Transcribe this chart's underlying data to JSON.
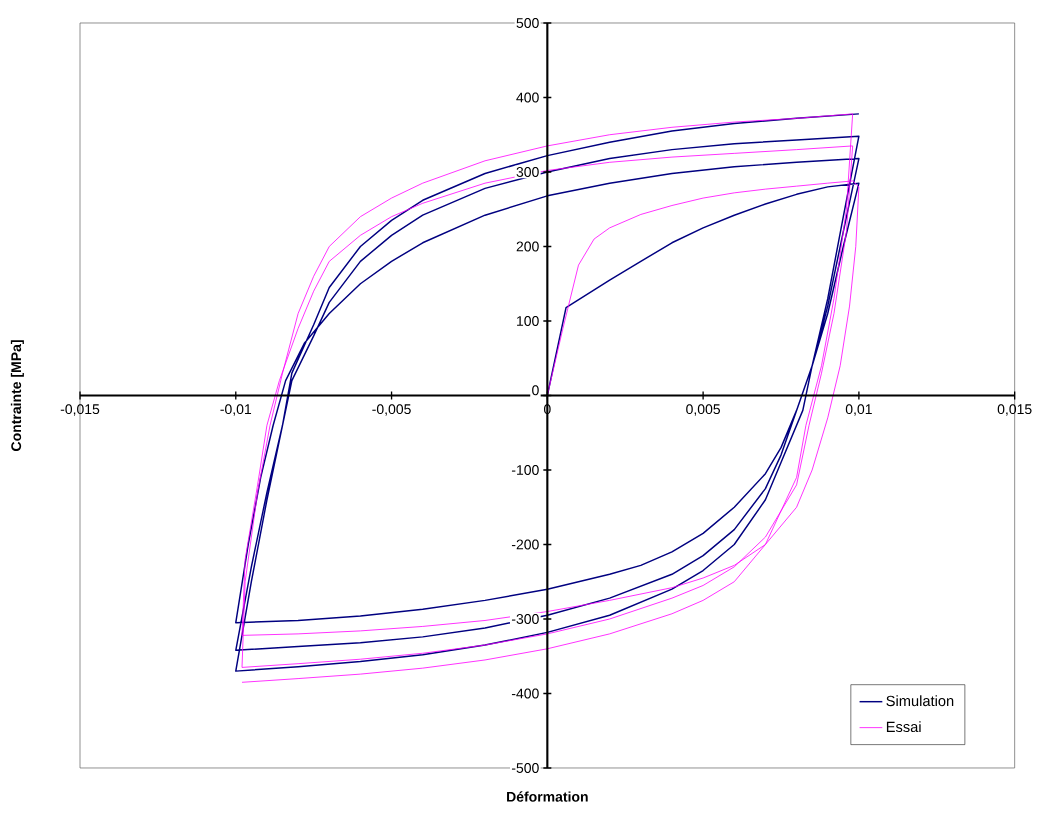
{
  "chart_data": {
    "type": "line",
    "xlabel": "Déformation",
    "ylabel": "Contrainte [MPa]",
    "xlim": [
      -0.015,
      0.015
    ],
    "ylim": [
      -500,
      500
    ],
    "xticks": [
      {
        "value": -0.015,
        "label": "-0,015"
      },
      {
        "value": -0.01,
        "label": "-0,01"
      },
      {
        "value": -0.005,
        "label": "-0,005"
      },
      {
        "value": 0,
        "label": "0"
      },
      {
        "value": 0.005,
        "label": "0,005"
      },
      {
        "value": 0.01,
        "label": "0,01"
      },
      {
        "value": 0.015,
        "label": "0,015"
      }
    ],
    "yticks": [
      -500,
      -400,
      -300,
      -200,
      -100,
      0,
      100,
      200,
      300,
      400,
      500
    ],
    "legend": "bottom right",
    "marker": "none",
    "line_style": "solid",
    "series": [
      {
        "name": "Simulation",
        "color": "#000080",
        "x": [
          0,
          0.0006,
          0.002,
          0.003,
          0.004,
          0.005,
          0.006,
          0.007,
          0.008,
          0.009,
          0.01,
          0.0095,
          0.009,
          0.0085,
          0.008,
          0.0075,
          0.007,
          0.006,
          0.005,
          0.004,
          0.003,
          0.002,
          0.001,
          0,
          -0.002,
          -0.004,
          -0.006,
          -0.008,
          -0.01,
          -0.0096,
          -0.0092,
          -0.0088,
          -0.0084,
          -0.0078,
          -0.007,
          -0.006,
          -0.005,
          -0.004,
          -0.002,
          0,
          0.002,
          0.004,
          0.006,
          0.008,
          0.01,
          0.0095,
          0.009,
          0.0085,
          0.008,
          0.0075,
          0.007,
          0.006,
          0.005,
          0.004,
          0.002,
          0,
          -0.002,
          -0.004,
          -0.006,
          -0.008,
          -0.01,
          -0.0095,
          -0.009,
          -0.0085,
          -0.0082,
          -0.0075,
          -0.007,
          -0.006,
          -0.005,
          -0.004,
          -0.002,
          0,
          0.002,
          0.004,
          0.006,
          0.008,
          0.01,
          0.0095,
          0.009,
          0.0085,
          0.0082,
          0.0075,
          0.007,
          0.006,
          0.005,
          0.004,
          0.002,
          0,
          -0.002,
          -0.004,
          -0.006,
          -0.008,
          -0.01,
          -0.0095,
          -0.009,
          -0.0085,
          -0.0082,
          -0.0075,
          -0.007,
          -0.006,
          -0.005,
          -0.004,
          -0.002,
          0,
          0.002,
          0.004,
          0.006,
          0.008,
          0.01
        ],
        "values": [
          0,
          118,
          155,
          180,
          205,
          225,
          242,
          257,
          270,
          280,
          285,
          200,
          110,
          40,
          -20,
          -70,
          -105,
          -150,
          -185,
          -210,
          -228,
          -240,
          -250,
          -260,
          -275,
          -287,
          -296,
          -302,
          -305,
          -200,
          -110,
          -40,
          20,
          70,
          110,
          150,
          180,
          205,
          242,
          268,
          285,
          298,
          307,
          313,
          318,
          220,
          120,
          40,
          -20,
          -80,
          -125,
          -180,
          -215,
          -240,
          -272,
          -295,
          -312,
          -324,
          -332,
          -337,
          -342,
          -230,
          -130,
          -40,
          20,
          80,
          125,
          180,
          215,
          242,
          278,
          300,
          318,
          330,
          338,
          343,
          348,
          240,
          130,
          40,
          -20,
          -90,
          -140,
          -200,
          -235,
          -260,
          -295,
          -318,
          -335,
          -348,
          -357,
          -364,
          -370,
          -250,
          -140,
          -40,
          30,
          95,
          145,
          200,
          235,
          262,
          298,
          322,
          340,
          355,
          365,
          372,
          378
        ]
      },
      {
        "name": "Essai",
        "color": "#ff00ff",
        "x": [
          0,
          0.0005,
          0.001,
          0.0015,
          0.002,
          0.003,
          0.004,
          0.005,
          0.006,
          0.007,
          0.008,
          0.009,
          0.0098,
          0.01,
          0.0099,
          0.0097,
          0.0094,
          0.009,
          0.0085,
          0.008,
          0.007,
          0.006,
          0.005,
          0.004,
          0.002,
          0,
          -0.002,
          -0.004,
          -0.006,
          -0.008,
          -0.0098,
          -0.0097,
          -0.0093,
          -0.009,
          -0.0086,
          -0.008,
          -0.0075,
          -0.007,
          -0.006,
          -0.005,
          -0.004,
          -0.002,
          0,
          0.002,
          0.004,
          0.006,
          0.008,
          0.0098,
          0.0096,
          0.0092,
          0.0088,
          0.0084,
          0.008,
          0.007,
          0.006,
          0.005,
          0.004,
          0.002,
          0,
          -0.002,
          -0.004,
          -0.006,
          -0.008,
          -0.0098,
          -0.0097,
          -0.0093,
          -0.0089,
          -0.0085,
          -0.008,
          -0.0075,
          -0.007,
          -0.006,
          -0.005,
          -0.004,
          -0.002,
          0,
          0.002,
          0.004,
          0.006,
          0.008,
          0.0098,
          0.0096,
          0.0092,
          0.0088,
          0.0083,
          0.008,
          0.007,
          0.006,
          0.005,
          0.004,
          0.002,
          0,
          -0.002,
          -0.004,
          -0.006,
          -0.008,
          -0.0098
        ],
        "values": [
          0,
          90,
          175,
          210,
          225,
          243,
          255,
          265,
          272,
          277,
          281,
          285,
          288,
          280,
          200,
          120,
          40,
          -30,
          -100,
          -150,
          -200,
          -228,
          -245,
          -258,
          -275,
          -290,
          -302,
          -310,
          -316,
          -320,
          -322,
          -220,
          -120,
          -40,
          20,
          90,
          140,
          180,
          215,
          240,
          258,
          285,
          302,
          313,
          320,
          325,
          330,
          335,
          220,
          110,
          30,
          -40,
          -120,
          -190,
          -230,
          -255,
          -272,
          -300,
          -320,
          -335,
          -346,
          -354,
          -360,
          -365,
          -250,
          -130,
          -40,
          30,
          110,
          160,
          200,
          240,
          265,
          285,
          315,
          335,
          350,
          360,
          367,
          372,
          378,
          250,
          130,
          40,
          -40,
          -110,
          -200,
          -250,
          -275,
          -293,
          -320,
          -340,
          -355,
          -366,
          -374,
          -380,
          -385
        ]
      }
    ]
  }
}
